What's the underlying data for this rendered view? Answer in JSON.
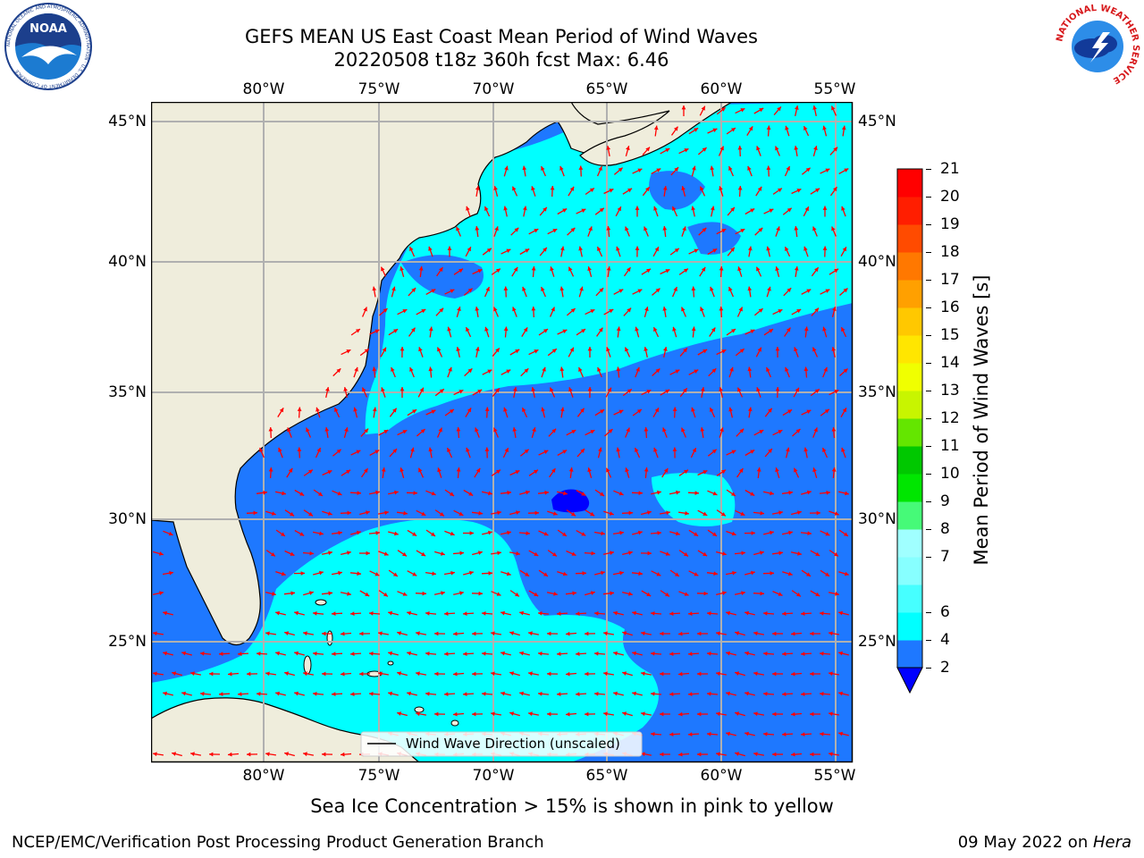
{
  "title": {
    "line1": "GEFS MEAN US East Coast Mean Period of Wind Waves",
    "line2": "20220508 t18z 360h fcst   Max: 6.46"
  },
  "map": {
    "lon_labels": [
      "80°W",
      "75°W",
      "70°W",
      "65°W",
      "60°W",
      "55°W"
    ],
    "lat_labels": [
      "45°N",
      "40°N",
      "35°N",
      "30°N",
      "25°N"
    ],
    "legend": "Wind Wave Direction (unscaled)",
    "land_color": "#efeddc",
    "ocean_levels": [
      {
        "range": "2-4",
        "color": "#1e78ff"
      },
      {
        "range": "4-6",
        "color": "#00ffff"
      },
      {
        "range": "<2",
        "color": "#0000ff"
      }
    ],
    "arrow_color": "#ff0000"
  },
  "colorbar": {
    "label": "Mean Period of Wind Waves [s]",
    "ticks": [
      "21",
      "20",
      "19",
      "18",
      "17",
      "16",
      "15",
      "14",
      "13",
      "12",
      "11",
      "10",
      "9",
      "8",
      "7",
      "6",
      "4",
      "2"
    ],
    "colors": [
      "#0000ff",
      "#1e78ff",
      "#00ffff",
      "#46ffff",
      "#87ffff",
      "#a0ffff",
      "#46fa78",
      "#00e600",
      "#00c800",
      "#64e600",
      "#c8f500",
      "#f0ff00",
      "#ffe600",
      "#ffc800",
      "#ffa000",
      "#ff7800",
      "#ff4b00",
      "#ff1e00",
      "#ff0000"
    ]
  },
  "note": "Sea Ice Concentration > 15% is shown in pink to yellow",
  "footer": {
    "left": "NCEP/EMC/Verification Post Processing Product Generation Branch",
    "date": "09 May 2022 on ",
    "host": "Hera"
  },
  "logos": {
    "noaa": "NOAA",
    "noaa_ring": "NATIONAL OCEANIC AND ATMOSPHERIC ADMINISTRATION · U.S. DEPARTMENT OF COMMERCE",
    "nws_ring": "NATIONAL WEATHER SERVICE"
  }
}
